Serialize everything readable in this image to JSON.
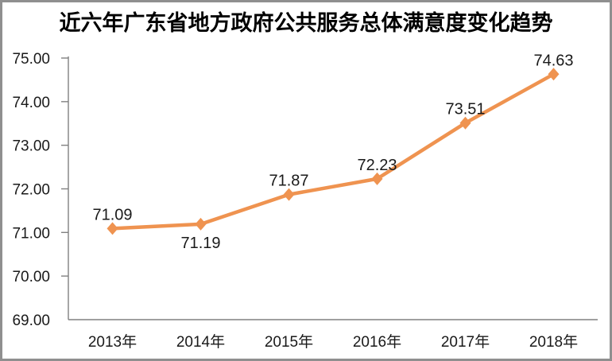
{
  "chart_data": {
    "type": "line",
    "title": "近六年广东省地方政府公共服务总体满意度变化趋势",
    "categories": [
      "2013年",
      "2014年",
      "2015年",
      "2016年",
      "2017年",
      "2018年"
    ],
    "values": [
      71.09,
      71.19,
      71.87,
      72.23,
      73.51,
      74.63
    ],
    "data_labels": [
      "71.09",
      "71.19",
      "71.87",
      "72.23",
      "73.51",
      "74.63"
    ],
    "labels_below": [
      1
    ],
    "ytick_labels": [
      "69.00",
      "70.00",
      "71.00",
      "72.00",
      "73.00",
      "74.00",
      "75.00"
    ],
    "ytick_step": 1,
    "ylim": [
      69,
      75
    ],
    "xlabel": "",
    "ylabel": "",
    "grid": false,
    "legend_position": "none",
    "marker": "diamond",
    "line_color": "#EF9350",
    "axis_color": "#808080",
    "text_color": "#1a1a1a",
    "frame_color": "#8f8f8f"
  }
}
